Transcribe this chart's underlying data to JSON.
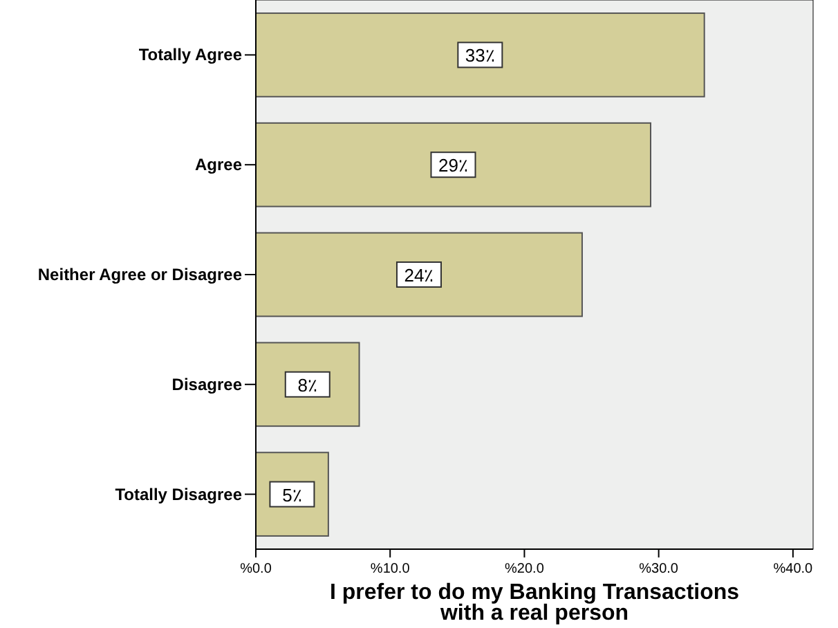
{
  "chart_data": {
    "type": "bar",
    "orientation": "horizontal",
    "xlabel": "I prefer to do my Banking Transactions with a real person",
    "categories": [
      "Totally Agree",
      "Agree",
      "Neither Agree or Disagree",
      "Disagree",
      "Totally Disagree"
    ],
    "values": [
      33.4,
      29.4,
      24.3,
      7.7,
      5.4
    ],
    "color": "#d4cf99",
    "value_labels": [
      "33٪",
      "29٪",
      "24٪",
      "8٪",
      "5٪"
    ],
    "xlim": [
      0,
      41.5
    ],
    "xticks": [
      {
        "value": 0,
        "label": "%0.0"
      },
      {
        "value": 10,
        "label": "%10.0"
      },
      {
        "value": 20,
        "label": "%20.0"
      },
      {
        "value": 30,
        "label": "%30.0"
      },
      {
        "value": 40,
        "label": "%40.0"
      }
    ]
  }
}
